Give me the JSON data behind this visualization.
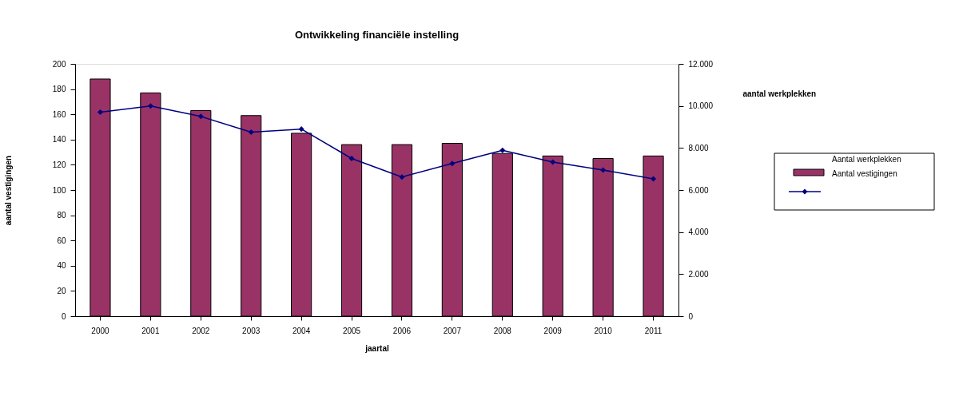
{
  "chart_data": {
    "type": "bar",
    "title": "Ontwikkeling financiële instelling",
    "xlabel": "jaartal",
    "ylabel": "aantal vestigingen",
    "y2label": "aantal werkplekken",
    "legend_title": "Aantal werkplekken",
    "categories": [
      "2000",
      "2001",
      "2002",
      "2003",
      "2004",
      "2005",
      "2006",
      "2007",
      "2008",
      "2009",
      "2010",
      "2011"
    ],
    "series": [
      {
        "name": "Aantal vestigingen",
        "color": "#993366",
        "values": [
          188,
          177,
          163,
          159,
          145,
          136,
          136,
          137,
          129,
          127,
          125,
          127
        ]
      },
      {
        "type": "line",
        "axis": "y2",
        "color": "#000080",
        "marker": "diamond",
        "values": [
          9700,
          10000,
          9500,
          8750,
          8900,
          7500,
          6620,
          7260,
          7890,
          7330,
          6950,
          6530
        ]
      }
    ],
    "ylim": [
      0,
      200
    ],
    "yticks": [
      0,
      20,
      40,
      60,
      80,
      100,
      120,
      140,
      160,
      180,
      200
    ],
    "y2lim": [
      0,
      12000
    ],
    "y2ticks": [
      0,
      {
        "value": 2000,
        "label": "2.000"
      },
      {
        "value": 4000,
        "label": "4.000"
      },
      {
        "value": 6000,
        "label": "6.000"
      },
      {
        "value": 8000,
        "label": "8.000"
      },
      {
        "value": 10000,
        "label": "10.000"
      },
      {
        "value": 12000,
        "label": "12.000"
      }
    ],
    "grid": false,
    "legend": "right"
  }
}
